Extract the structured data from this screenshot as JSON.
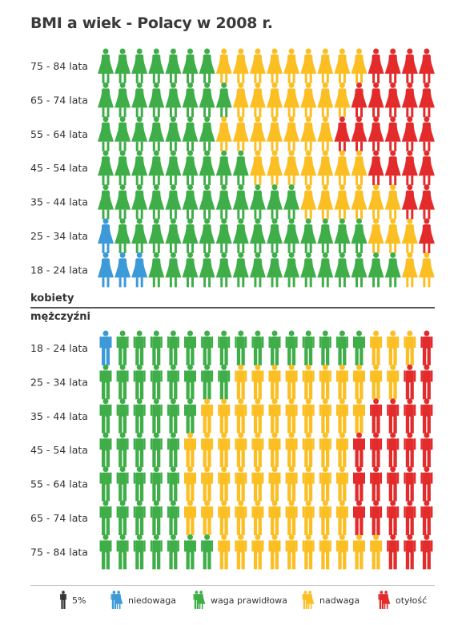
{
  "title": "BMI a wiek - Polacy w 2008 r.",
  "sections": {
    "women": "kobiety",
    "men": "mężczyźni"
  },
  "legend": {
    "unit_label": "5%",
    "underweight": "niedowaga",
    "normal": "waga prawidłowa",
    "overweight": "nadwaga",
    "obese": "otyłość"
  },
  "colors": {
    "underweight": "#3c9ad8",
    "normal": "#3fae49",
    "overweight": "#fbbf24",
    "obese": "#e32b2b",
    "unit": "#333333"
  },
  "chart_data": {
    "type": "pictogram",
    "unit_percent": 5,
    "categories": [
      "niedowaga",
      "waga prawidłowa",
      "nadwaga",
      "otyłość"
    ],
    "women": [
      {
        "label": "75 - 84 lata",
        "values": [
          0,
          7,
          9,
          4
        ]
      },
      {
        "label": "65 - 74 lata",
        "values": [
          0,
          8,
          7,
          5
        ]
      },
      {
        "label": "55 - 64 lata",
        "values": [
          0,
          7,
          7,
          6
        ]
      },
      {
        "label": "45 - 54 lata",
        "values": [
          0,
          9,
          7,
          4
        ]
      },
      {
        "label": "35 - 44 lata",
        "values": [
          0,
          12,
          6,
          2
        ]
      },
      {
        "label": "25 - 34 lata",
        "values": [
          1,
          15,
          3,
          1
        ]
      },
      {
        "label": "18 - 24 lata",
        "values": [
          3,
          15,
          2,
          0
        ]
      }
    ],
    "men": [
      {
        "label": "18 - 24 lata",
        "values": [
          1,
          15,
          3,
          1
        ]
      },
      {
        "label": "25 - 34 lata",
        "values": [
          0,
          8,
          10,
          2
        ]
      },
      {
        "label": "35 - 44 lata",
        "values": [
          0,
          6,
          10,
          4
        ]
      },
      {
        "label": "45 - 54 lata",
        "values": [
          0,
          5,
          10,
          5
        ]
      },
      {
        "label": "55 - 64 lata",
        "values": [
          0,
          5,
          10,
          5
        ]
      },
      {
        "label": "65 - 74 lata",
        "values": [
          0,
          5,
          10,
          5
        ]
      },
      {
        "label": "75 - 84 lata",
        "values": [
          0,
          7,
          10,
          3
        ]
      }
    ]
  }
}
